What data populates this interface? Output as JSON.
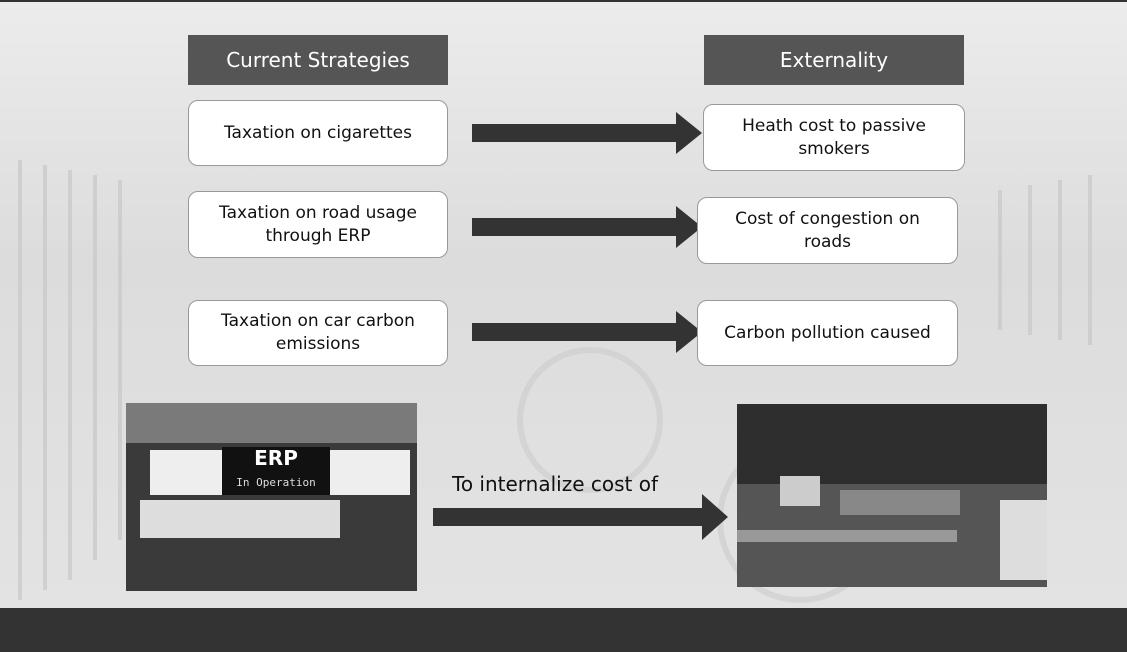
{
  "headers": {
    "left": "Current Strategies",
    "right": "Externality"
  },
  "rows": [
    {
      "strategy": "Taxation on cigarettes",
      "externality": "Heath cost to passive smokers"
    },
    {
      "strategy": "Taxation on road usage through ERP",
      "externality": "Cost of congestion on roads"
    },
    {
      "strategy": "Taxation on car carbon emissions",
      "externality": "Carbon pollution caused"
    }
  ],
  "photo_left": {
    "sign": "ERP",
    "sign_sub": "In Operation"
  },
  "bottom_arrow_label": "To internalize cost of"
}
